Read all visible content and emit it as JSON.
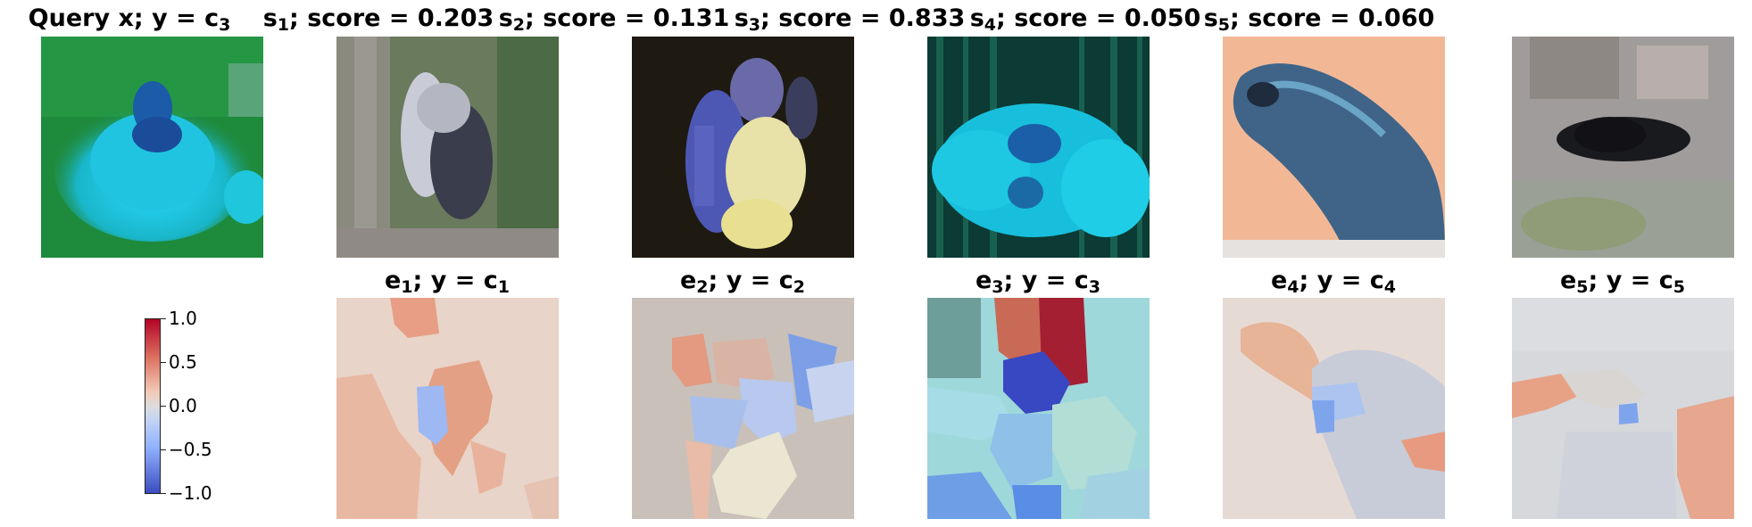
{
  "top_row": [
    {
      "name": "Query x; y = ",
      "sub": "3",
      "label": "c",
      "score": ""
    },
    {
      "name": "s",
      "sub": "1",
      "score_text": "; score = 0.203"
    },
    {
      "name": "s",
      "sub": "2",
      "score_text": "; score = 0.131"
    },
    {
      "name": "s",
      "sub": "3",
      "score_text": "; score = 0.833"
    },
    {
      "name": "s",
      "sub": "4",
      "score_text": "; score = 0.050"
    },
    {
      "name": "s",
      "sub": "5",
      "score_text": "; score = 0.060"
    }
  ],
  "bottom_row": [
    {
      "name": "e",
      "sub": "1",
      "mid": "; y = c",
      "csub": "1"
    },
    {
      "name": "e",
      "sub": "2",
      "mid": "; y = c",
      "csub": "2"
    },
    {
      "name": "e",
      "sub": "3",
      "mid": "; y = c",
      "csub": "3"
    },
    {
      "name": "e",
      "sub": "4",
      "mid": "; y = c",
      "csub": "4"
    },
    {
      "name": "e",
      "sub": "5",
      "mid": "; y = c",
      "csub": "5"
    }
  ],
  "colorbar": {
    "ticks": [
      "1.0",
      "0.5",
      "0.0",
      "−0.5",
      "−1.0"
    ],
    "min": -1.0,
    "max": 1.0,
    "colormap": "coolwarm",
    "low_color": "#3b4cc0",
    "mid_color": "#dddcdc",
    "high_color": "#b40426"
  }
}
